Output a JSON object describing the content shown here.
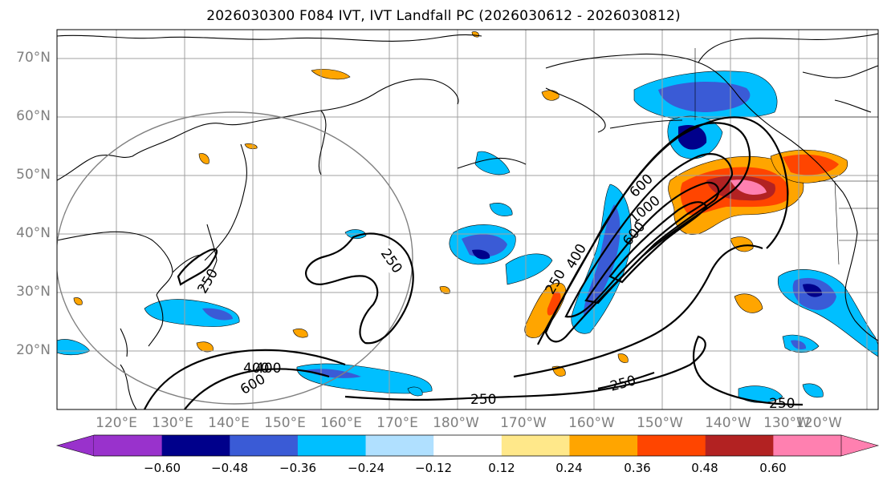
{
  "title": "2026030300 F084 IVT, IVT Landfall PC (2026030612 - 2026030812)",
  "lat_labels": [
    "70°N",
    "60°N",
    "50°N",
    "40°N",
    "30°N",
    "20°N"
  ],
  "lon_labels": [
    "120°E",
    "130°E",
    "140°E",
    "150°E",
    "160°E",
    "170°E",
    "180°W",
    "170°W",
    "160°W",
    "150°W",
    "140°W",
    "130°W",
    "120°W"
  ],
  "contour_labels": [
    "250",
    "250",
    "400",
    "600",
    "1000",
    "600",
    "400",
    "250",
    "400",
    "600",
    "250",
    "250",
    "250"
  ],
  "colorbar": {
    "ticks": [
      "−0.60",
      "−0.48",
      "−0.36",
      "−0.24",
      "−0.12",
      "0.12",
      "0.24",
      "0.36",
      "0.48",
      "0.60"
    ],
    "colors": [
      "#9932cc",
      "#00008b",
      "#3a5bd6",
      "#00bfff",
      "#b0e0ff",
      "#ffffff",
      "#ffe88a",
      "#ffa500",
      "#ff4500",
      "#b22222",
      "#ff80b0"
    ]
  },
  "colors": {
    "land_outline": "#000000",
    "grid": "#a0a0a0",
    "circle": "#808080"
  }
}
